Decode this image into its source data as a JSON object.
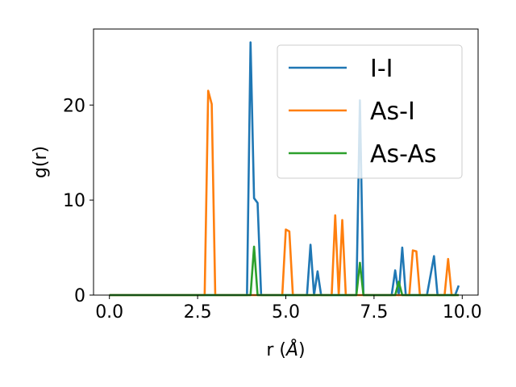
{
  "chart_data": {
    "type": "line",
    "title": "",
    "xlabel_prefix": "r (",
    "xlabel_symbol": "Å",
    "xlabel_suffix": ")",
    "ylabel": "g(r)",
    "xlim": [
      -0.45,
      10.45
    ],
    "ylim": [
      0,
      28
    ],
    "xticks": [
      0.0,
      2.5,
      5.0,
      7.5,
      10.0
    ],
    "xtick_labels": [
      "0.0",
      "2.5",
      "5.0",
      "7.5",
      "10.0"
    ],
    "yticks": [
      0,
      10,
      20
    ],
    "ytick_labels": [
      "0",
      "10",
      "20"
    ],
    "grid": false,
    "legend_position": "upper-right",
    "series": [
      {
        "name": "I-I",
        "color": "#1f77b4",
        "x": [
          0.0,
          3.9,
          4.0,
          4.1,
          4.2,
          4.3,
          5.6,
          5.7,
          5.8,
          5.9,
          6.0,
          7.0,
          7.1,
          7.2,
          8.0,
          8.1,
          8.2,
          8.3,
          8.4,
          9.0,
          9.2,
          9.3,
          9.8,
          9.9
        ],
        "y": [
          0.0,
          0.0,
          26.6,
          10.2,
          9.7,
          0.0,
          0.0,
          5.3,
          0.0,
          2.5,
          0.0,
          0.0,
          20.5,
          0.0,
          0.0,
          2.6,
          0.0,
          5.0,
          0.0,
          0.0,
          4.1,
          0.0,
          0.0,
          1.0
        ]
      },
      {
        "name": "As-I",
        "color": "#ff7f0e",
        "x": [
          0.0,
          2.7,
          2.8,
          2.9,
          3.0,
          4.9,
          5.0,
          5.1,
          5.2,
          6.3,
          6.4,
          6.5,
          6.6,
          6.7,
          8.5,
          8.6,
          8.7,
          8.8,
          9.5,
          9.6,
          9.7,
          9.9
        ],
        "y": [
          0.0,
          0.0,
          21.5,
          20.1,
          0.0,
          0.0,
          6.9,
          6.7,
          0.0,
          0.0,
          8.4,
          0.0,
          7.9,
          0.0,
          0.0,
          4.7,
          4.6,
          0.0,
          0.0,
          3.8,
          0.0,
          0.0
        ]
      },
      {
        "name": "As-As",
        "color": "#2ca02c",
        "x": [
          0.0,
          4.0,
          4.1,
          4.2,
          7.0,
          7.1,
          7.2,
          8.1,
          8.2,
          8.3,
          9.9
        ],
        "y": [
          0.0,
          0.0,
          5.1,
          0.0,
          0.0,
          3.4,
          0.0,
          0.0,
          1.4,
          0.0,
          0.0
        ]
      }
    ]
  }
}
